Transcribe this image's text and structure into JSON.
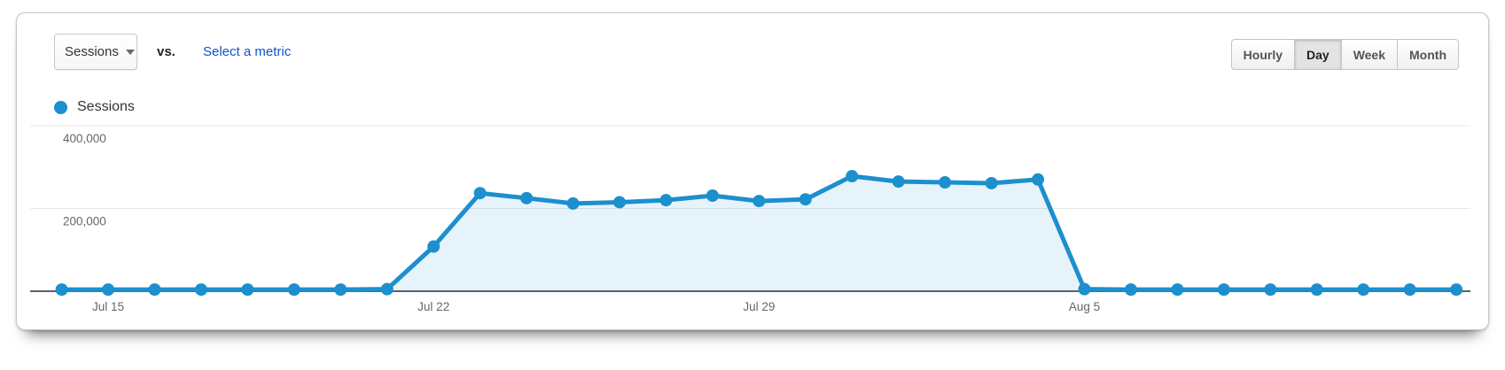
{
  "toolbar": {
    "metric_selector": {
      "label": "Sessions"
    },
    "vs_label": "vs.",
    "select_metric_link": "Select a metric",
    "link_color": "#1155cc",
    "granularity_buttons": [
      {
        "label": "Hourly",
        "selected": false
      },
      {
        "label": "Day",
        "selected": true
      },
      {
        "label": "Week",
        "selected": false
      },
      {
        "label": "Month",
        "selected": false
      }
    ]
  },
  "legend": {
    "label": "Sessions"
  },
  "chart_data": {
    "type": "area",
    "categories": [
      "Jul 14",
      "Jul 15",
      "Jul 16",
      "Jul 17",
      "Jul 18",
      "Jul 19",
      "Jul 20",
      "Jul 21",
      "Jul 22",
      "Jul 23",
      "Jul 24",
      "Jul 25",
      "Jul 26",
      "Jul 27",
      "Jul 28",
      "Jul 29",
      "Jul 30",
      "Jul 31",
      "Aug 1",
      "Aug 2",
      "Aug 3",
      "Aug 4",
      "Aug 5",
      "Aug 6",
      "Aug 7",
      "Aug 8",
      "Aug 9",
      "Aug 10",
      "Aug 11",
      "Aug 12",
      "Aug 13"
    ],
    "series": [
      {
        "name": "Sessions",
        "values": [
          4000,
          4000,
          4000,
          4000,
          4000,
          4000,
          4000,
          5000,
          108000,
          237000,
          225000,
          212000,
          215000,
          220000,
          231000,
          218000,
          222000,
          278000,
          265000,
          263000,
          261000,
          270000,
          5000,
          4000,
          4000,
          4000,
          4000,
          4000,
          4000,
          4000,
          4000
        ]
      }
    ],
    "x_ticks": [
      {
        "index": 1,
        "label": "Jul 15"
      },
      {
        "index": 8,
        "label": "Jul 22"
      },
      {
        "index": 15,
        "label": "Jul 29"
      },
      {
        "index": 22,
        "label": "Aug 5"
      }
    ],
    "y_ticks": [
      {
        "value": 200000,
        "label": "200,000"
      },
      {
        "value": 400000,
        "label": "400,000"
      }
    ],
    "ylim": [
      0,
      430000
    ],
    "grid": true,
    "legend_position": "top-left",
    "colors": {
      "line": "#1c8fce",
      "fill": "rgba(28,143,206,0.11)",
      "axis": "#5f5f5f",
      "grid": "#e8e8e8",
      "tick_text": "#666666"
    }
  }
}
